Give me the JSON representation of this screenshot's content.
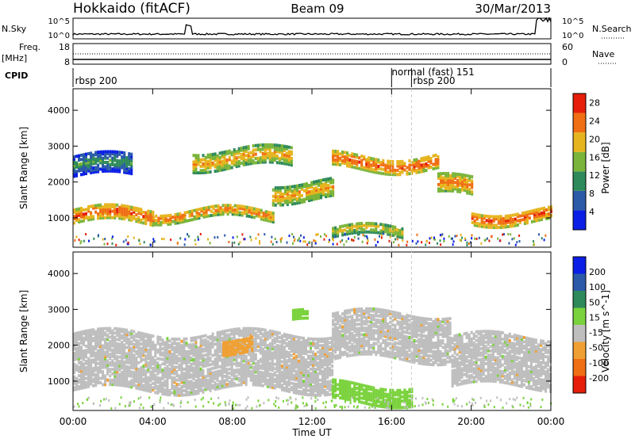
{
  "header": {
    "station": "Hokkaido (fitACF)",
    "beam": "Beam 09",
    "date": "30/Mar/2013"
  },
  "small_panels": {
    "nsky_label": "N.Sky",
    "nsky_top_tick": "10^5",
    "nsky_bottom_tick": "10^0",
    "nsearch_label": "N.Search",
    "nsearch_top_tick": "10^5",
    "nsearch_bottom_tick": "10^0",
    "freq_label": "Freq.",
    "freq_unit": "[MHz]",
    "freq_ticks": [
      "18",
      "8"
    ],
    "nave_label": "Nave",
    "nave_ticks": [
      "60",
      "0"
    ],
    "cpid_label": "CPID",
    "cpid_annotations": [
      {
        "text": "rbsp 200",
        "time_hours": 0.1
      },
      {
        "text": "normal (fast) 151",
        "time_hours": 16.0
      },
      {
        "text": "rbsp 200",
        "time_hours": 17.0
      }
    ]
  },
  "chart_data": [
    {
      "type": "heatmap",
      "name": "power",
      "xlabel": "",
      "ylabel": "Slant Range [km]",
      "x_ticks": [
        "00:00",
        "04:00",
        "08:00",
        "12:00",
        "16:00",
        "20:00",
        "00:00"
      ],
      "y_ticks": [
        "1000",
        "2000",
        "3000",
        "4000"
      ],
      "xlim_hours": [
        0,
        24
      ],
      "ylim_km": [
        180,
        4600
      ],
      "colorbar": {
        "label": "Power [dB]",
        "ticks": [
          "4",
          "8",
          "12",
          "16",
          "20",
          "24",
          "28"
        ],
        "range": [
          0,
          30
        ],
        "colors": [
          "#0a1ee6",
          "#2a5aa8",
          "#2e8a5a",
          "#7ab43a",
          "#e6b41e",
          "#f06e14",
          "#e61e0a"
        ]
      },
      "bands": [
        {
          "t0": 0.0,
          "t1": 4.0,
          "r_center": 1100,
          "r_width": 400,
          "level": 28
        },
        {
          "t0": 4.0,
          "t1": 10.0,
          "r_center": 1150,
          "r_width": 300,
          "level": 26
        },
        {
          "t0": 10.0,
          "t1": 13.0,
          "r_center": 1800,
          "r_width": 500,
          "level": 24
        },
        {
          "t0": 13.0,
          "t1": 18.3,
          "r_center": 2600,
          "r_width": 400,
          "level": 28
        },
        {
          "t0": 18.3,
          "t1": 20.0,
          "r_center": 1900,
          "r_width": 500,
          "level": 26
        },
        {
          "t0": 20.0,
          "t1": 24.0,
          "r_center": 1100,
          "r_width": 350,
          "level": 28
        },
        {
          "t0": 6.0,
          "t1": 11.0,
          "r_center": 2700,
          "r_width": 500,
          "level": 24
        },
        {
          "t0": 0.0,
          "t1": 3.0,
          "r_center": 2500,
          "r_width": 600,
          "level": 14
        },
        {
          "t0": 13.0,
          "t1": 16.5,
          "r_center": 650,
          "r_width": 300,
          "level": 22
        }
      ]
    },
    {
      "type": "heatmap",
      "name": "velocity",
      "xlabel": "Time UT",
      "ylabel": "Slant Range [km]",
      "x_ticks": [
        "00:00",
        "04:00",
        "08:00",
        "12:00",
        "16:00",
        "20:00",
        "00:00"
      ],
      "y_ticks": [
        "1000",
        "2000",
        "3000",
        "4000"
      ],
      "xlim_hours": [
        0,
        24
      ],
      "ylim_km": [
        180,
        4600
      ],
      "colorbar": {
        "label": "Velocity [m s^-1]",
        "ticks": [
          "200",
          "100",
          "50",
          "15",
          "-15",
          "-50",
          "-100",
          "-200"
        ],
        "colors": [
          "#0a1ee6",
          "#2a5aa8",
          "#2e8a5a",
          "#7ad23c",
          "#bebebe",
          "#f0a032",
          "#f06e14",
          "#e61e0a"
        ]
      },
      "bands": [
        {
          "t0": 0.0,
          "t1": 13.0,
          "r_center": 1600,
          "r_width": 1600,
          "level": "gray"
        },
        {
          "t0": 13.0,
          "t1": 19.0,
          "r_center": 2300,
          "r_width": 1300,
          "level": "gray"
        },
        {
          "t0": 19.0,
          "t1": 24.0,
          "r_center": 1600,
          "r_width": 1400,
          "level": "gray"
        },
        {
          "t0": 13.0,
          "t1": 17.0,
          "r_center": 700,
          "r_width": 500,
          "level": "green"
        },
        {
          "t0": 11.0,
          "t1": 11.8,
          "r_center": 2800,
          "r_width": 300,
          "level": "green"
        },
        {
          "t0": 7.5,
          "t1": 9.0,
          "r_center": 2100,
          "r_width": 400,
          "level": "orange"
        }
      ]
    }
  ]
}
